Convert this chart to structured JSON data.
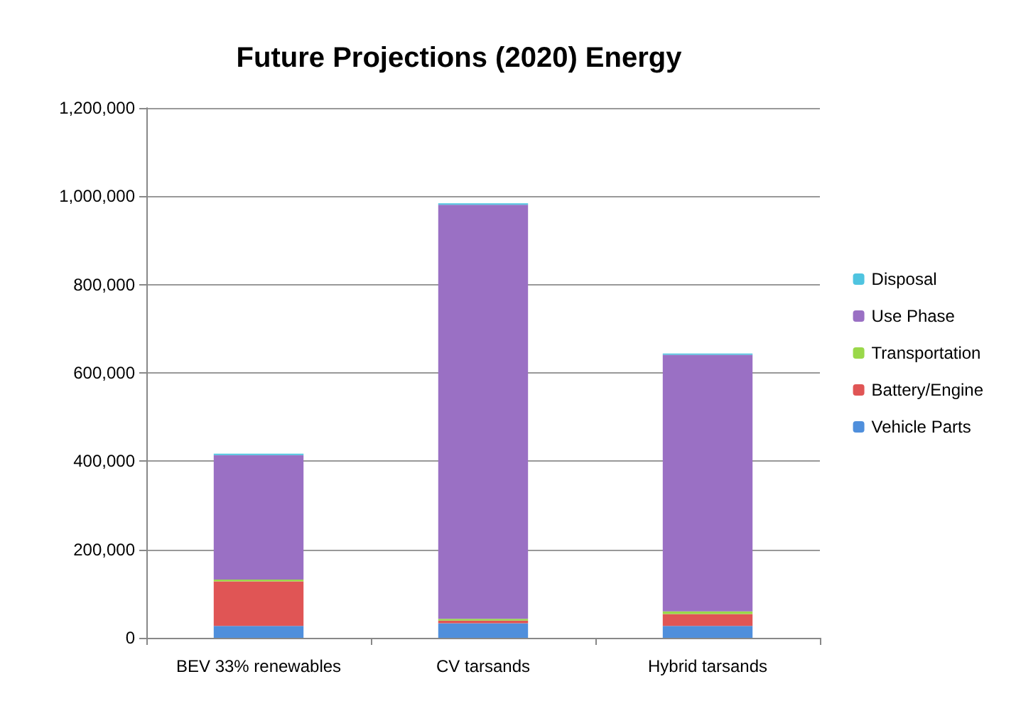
{
  "chart_data": {
    "type": "bar",
    "title": "Future Projections (2020) Energy",
    "stacked": true,
    "categories": [
      "BEV 33% renewables",
      "CV tarsands",
      "Hybrid tarsands"
    ],
    "series": [
      {
        "name": "Vehicle Parts",
        "color": "#4f8fdc",
        "values": [
          27000,
          33000,
          27000
        ]
      },
      {
        "name": "Battery/Engine",
        "color": "#e05555",
        "values": [
          101000,
          6000,
          27000
        ]
      },
      {
        "name": "Transportation",
        "color": "#9ad84a",
        "values": [
          4000,
          4000,
          6000
        ]
      },
      {
        "name": "Use Phase",
        "color": "#9a70c4",
        "values": [
          282000,
          938000,
          581000
        ]
      },
      {
        "name": "Disposal",
        "color": "#4fc4e0",
        "values": [
          3000,
          3000,
          3000
        ]
      }
    ],
    "ylim": [
      0,
      1200000
    ],
    "yticks": [
      0,
      {
        "value": 200000,
        "label": "200,000"
      },
      {
        "value": 400000,
        "label": "400,000"
      },
      {
        "value": 600000,
        "label": "600,000"
      },
      {
        "value": 800000,
        "label": "800,000"
      },
      {
        "value": 1000000,
        "label": "1,000,000"
      },
      {
        "value": 1200000,
        "label": "1,200,000"
      }
    ],
    "grid": "y",
    "legend": "right"
  }
}
